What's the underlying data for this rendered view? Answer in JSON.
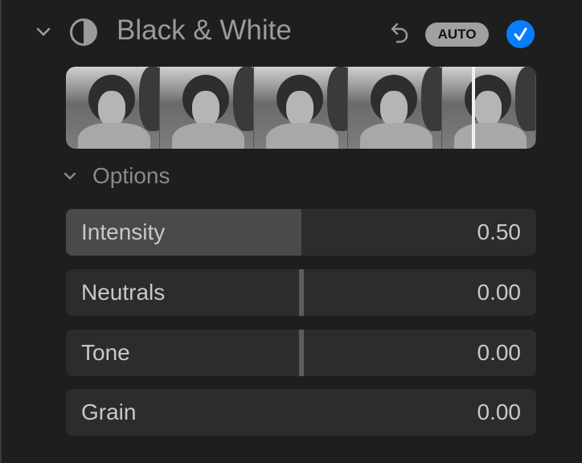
{
  "header": {
    "title": "Black & White",
    "auto_label": "AUTO",
    "enabled": true,
    "accent": "#0a7cff",
    "icons": [
      "chevron-down-icon",
      "black-white-icon",
      "undo-icon",
      "checkmark-icon"
    ]
  },
  "options": {
    "label": "Options"
  },
  "sliders": [
    {
      "label": "Intensity",
      "value": "0.50",
      "fraction": 0.5
    },
    {
      "label": "Neutrals",
      "value": "0.00",
      "fraction": 0.5
    },
    {
      "label": "Tone",
      "value": "0.00",
      "fraction": 0.5
    },
    {
      "label": "Grain",
      "value": "0.00",
      "fraction": 0
    }
  ]
}
